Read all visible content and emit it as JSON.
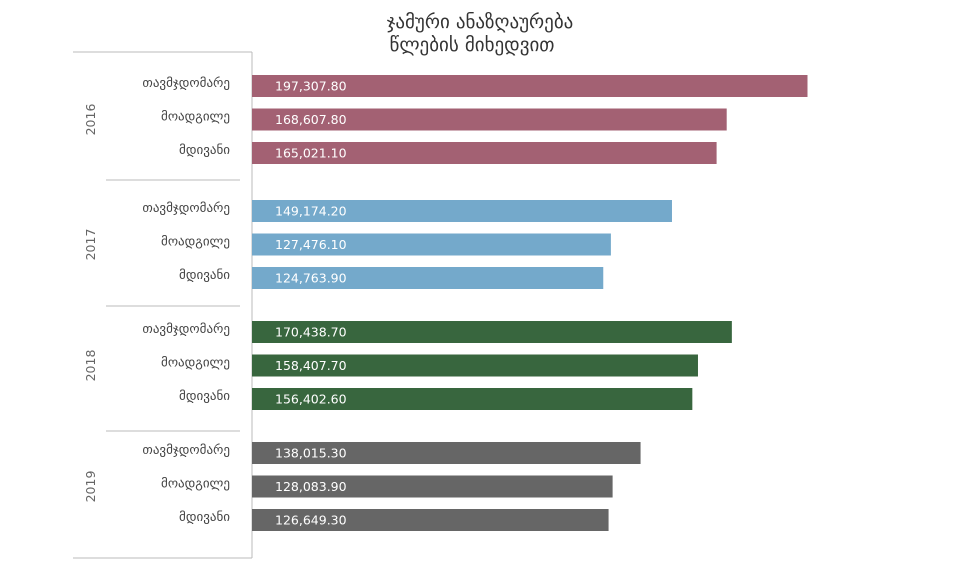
{
  "chart_data": {
    "type": "bar",
    "orientation": "horizontal",
    "title": "ჯამური ანაზღაურება",
    "subtitle": "წლების მიხედვით",
    "xlim": [
      0,
      200000
    ],
    "grid": false,
    "groups": [
      {
        "name": "2016",
        "color": "#a36173",
        "items": [
          {
            "label": "თავმჯდომარე",
            "value": 197307.8,
            "text": "197,307.80"
          },
          {
            "label": "მოადგილე",
            "value": 168607.8,
            "text": "168,607.80"
          },
          {
            "label": "მდივანი",
            "value": 165021.1,
            "text": "165,021.10"
          }
        ]
      },
      {
        "name": "2017",
        "color": "#74a9cb",
        "items": [
          {
            "label": "თავმჯდომარე",
            "value": 149174.2,
            "text": "149,174.20"
          },
          {
            "label": "მოადგილე",
            "value": 127476.1,
            "text": "127,476.10"
          },
          {
            "label": "მდივანი",
            "value": 124763.9,
            "text": "124,763.90"
          }
        ]
      },
      {
        "name": "2018",
        "color": "#38663e",
        "items": [
          {
            "label": "თავმჯდომარე",
            "value": 170438.7,
            "text": "170,438.70"
          },
          {
            "label": "მოადგილე",
            "value": 158407.7,
            "text": "158,407.70"
          },
          {
            "label": "მდივანი",
            "value": 156402.6,
            "text": "156,402.60"
          }
        ]
      },
      {
        "name": "2019",
        "color": "#666666",
        "items": [
          {
            "label": "თავმჯდომარე",
            "value": 138015.3,
            "text": "138,015.30"
          },
          {
            "label": "მოადგილე",
            "value": 128083.9,
            "text": "128,083.90"
          },
          {
            "label": "მდივანი",
            "value": 126649.3,
            "text": "126,649.30"
          }
        ]
      }
    ]
  }
}
